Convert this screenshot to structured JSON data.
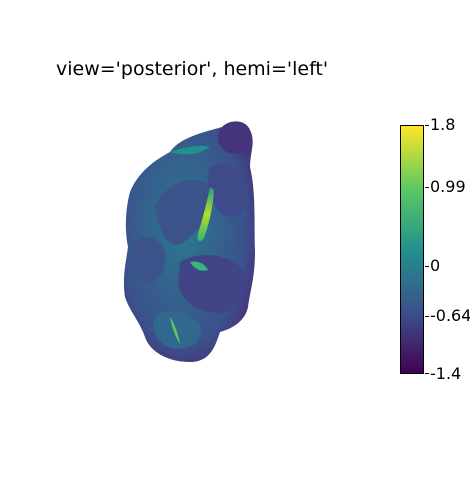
{
  "figure": {
    "title": "view='posterior', hemi='left'"
  },
  "colorbar": {
    "colormap": "viridis",
    "min": -1.4,
    "max": 1.8,
    "ticks": [
      {
        "label": "1.8",
        "value": 1.8
      },
      {
        "label": "0.99",
        "value": 0.99
      },
      {
        "label": "0",
        "value": 0
      },
      {
        "label": "-0.64",
        "value": -0.64
      },
      {
        "label": "-1.4",
        "value": -1.4
      }
    ]
  },
  "colors": {
    "viridis_stops": [
      "#440154",
      "#3b528b",
      "#21918c",
      "#5ec962",
      "#fde725"
    ]
  }
}
